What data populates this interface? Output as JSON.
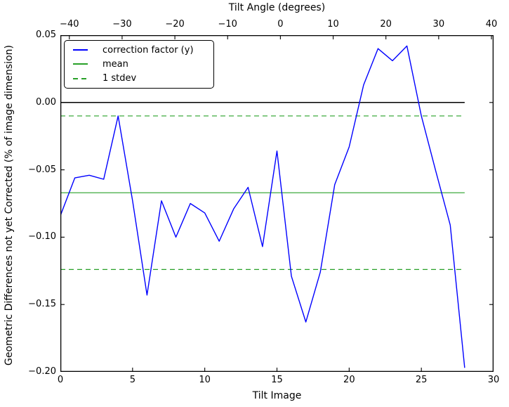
{
  "figure": {
    "top_axis_title": "Tilt Angle (degrees)",
    "x_axis_label": "Tilt Image",
    "y_axis_label": "Geometric Differences not yet Corrected (% of image dimension)"
  },
  "legend": {
    "items": [
      {
        "label": "correction factor (y)",
        "color": "#0000ff",
        "style": "solid"
      },
      {
        "label": "mean",
        "color": "#28a028",
        "style": "solid"
      },
      {
        "label": "1 stdev",
        "color": "#28a028",
        "style": "dashed"
      }
    ]
  },
  "chart_data": {
    "type": "line",
    "title": "",
    "top_xlabel": "Tilt Angle (degrees)",
    "xlabel": "Tilt Image",
    "ylabel": "Geometric Differences not yet Corrected (% of image dimension)",
    "xlim": [
      0,
      30
    ],
    "ylim": [
      -0.2,
      0.05
    ],
    "top_xlim": [
      -41.7,
      40.4
    ],
    "grid": false,
    "legend_position": "upper left",
    "x_ticks": [
      0,
      5,
      10,
      15,
      20,
      25,
      30
    ],
    "x_tick_labels": [
      "0",
      "5",
      "10",
      "15",
      "20",
      "25",
      "30"
    ],
    "top_x_ticks": [
      -40,
      -30,
      -20,
      -10,
      0,
      10,
      20,
      30,
      40
    ],
    "top_x_tick_labels": [
      "−40",
      "−30",
      "−20",
      "−10",
      "0",
      "10",
      "20",
      "30",
      "40"
    ],
    "y_ticks": [
      0.05,
      0.0,
      -0.05,
      -0.1,
      -0.15,
      -0.2
    ],
    "y_tick_labels": [
      "0.05",
      "0.00",
      "−0.05",
      "−0.10",
      "−0.15",
      "−0.20"
    ],
    "x": [
      0,
      1,
      2,
      3,
      4,
      5,
      6,
      7,
      8,
      9,
      10,
      11,
      12,
      13,
      14,
      15,
      16,
      17,
      18,
      19,
      20,
      21,
      22,
      23,
      24,
      25,
      26,
      27,
      28
    ],
    "series": [
      {
        "name": "correction factor (y)",
        "color": "#0000ff",
        "style": "solid",
        "values": [
          -0.084,
          -0.056,
          -0.054,
          -0.057,
          -0.01,
          -0.073,
          -0.143,
          -0.073,
          -0.1,
          -0.075,
          -0.082,
          -0.103,
          -0.079,
          -0.063,
          -0.107,
          -0.036,
          -0.129,
          -0.163,
          -0.126,
          -0.061,
          -0.033,
          0.013,
          0.04,
          0.031,
          0.042,
          -0.01,
          -0.051,
          -0.091,
          -0.197
        ]
      }
    ],
    "reference_lines": [
      {
        "name": "zero",
        "value": 0.0,
        "color": "#000000",
        "style": "solid",
        "x_range": [
          0,
          28
        ]
      },
      {
        "name": "mean",
        "value": -0.067,
        "color": "#28a028",
        "style": "solid",
        "x_range": [
          0,
          28
        ]
      },
      {
        "name": "plus-1-stdev",
        "value": -0.01,
        "color": "#28a028",
        "style": "dashed",
        "x_range": [
          0,
          28
        ]
      },
      {
        "name": "minus-1-stdev",
        "value": -0.124,
        "color": "#28a028",
        "style": "dashed",
        "x_range": [
          0,
          28
        ]
      }
    ]
  }
}
